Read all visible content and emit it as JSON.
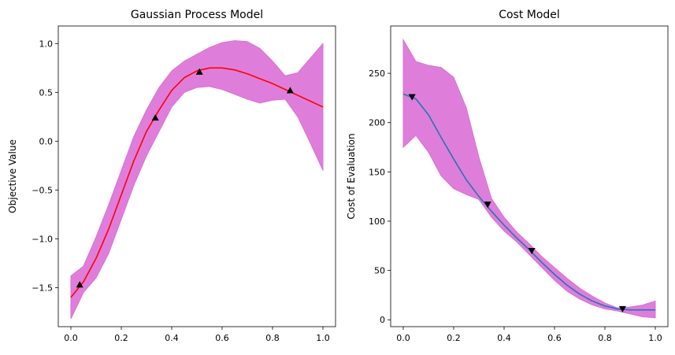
{
  "chart_data": [
    {
      "type": "line",
      "title": "Gaussian Process Model",
      "xlabel": "",
      "ylabel": "Objective Value",
      "xlim": [
        -0.05,
        1.05
      ],
      "ylim": [
        -1.9,
        1.18
      ],
      "xticks": [
        0.0,
        0.2,
        0.4,
        0.6,
        0.8,
        1.0
      ],
      "xtick_labels": [
        "0.0",
        "0.2",
        "0.4",
        "0.6",
        "0.8",
        "1.0"
      ],
      "yticks": [
        -1.5,
        -1.0,
        -0.5,
        0.0,
        0.5,
        1.0
      ],
      "ytick_labels": [
        "−1.5",
        "−1.0",
        "−0.5",
        "0.0",
        "0.5",
        "1.0"
      ],
      "grid": false,
      "mean": {
        "color": "#ff0000",
        "x": [
          0.0,
          0.05,
          0.1,
          0.15,
          0.2,
          0.25,
          0.3,
          0.35,
          0.4,
          0.45,
          0.5,
          0.55,
          0.6,
          0.65,
          0.7,
          0.75,
          0.8,
          0.85,
          0.9,
          0.95,
          1.0
        ],
        "y": [
          -1.6,
          -1.44,
          -1.2,
          -0.9,
          -0.55,
          -0.2,
          0.1,
          0.32,
          0.52,
          0.65,
          0.72,
          0.75,
          0.75,
          0.73,
          0.69,
          0.64,
          0.59,
          0.53,
          0.47,
          0.41,
          0.35
        ]
      },
      "band": {
        "color": "#da70d6",
        "x": [
          0.0,
          0.05,
          0.1,
          0.15,
          0.2,
          0.25,
          0.3,
          0.35,
          0.4,
          0.45,
          0.5,
          0.55,
          0.6,
          0.65,
          0.7,
          0.75,
          0.8,
          0.85,
          0.9,
          0.95,
          1.0
        ],
        "lower": [
          -1.82,
          -1.55,
          -1.4,
          -1.15,
          -0.8,
          -0.45,
          -0.15,
          0.1,
          0.35,
          0.5,
          0.55,
          0.56,
          0.53,
          0.48,
          0.43,
          0.39,
          0.42,
          0.43,
          0.25,
          -0.02,
          -0.3
        ],
        "upper": [
          -1.38,
          -1.28,
          -0.98,
          -0.65,
          -0.3,
          0.05,
          0.32,
          0.55,
          0.72,
          0.82,
          0.89,
          0.96,
          1.01,
          1.03,
          1.02,
          0.95,
          0.82,
          0.67,
          0.7,
          0.85,
          1.0
        ]
      },
      "points": {
        "marker": "triangle-up",
        "color": "#000000",
        "x": [
          0.035,
          0.335,
          0.51,
          0.87
        ],
        "y": [
          -1.47,
          0.24,
          0.71,
          0.52
        ]
      }
    },
    {
      "type": "line",
      "title": "Cost Model",
      "xlabel": "",
      "ylabel": "Cost of Evaluation",
      "xlim": [
        -0.05,
        1.05
      ],
      "ylim": [
        -7,
        298
      ],
      "xticks": [
        0.0,
        0.2,
        0.4,
        0.6,
        0.8,
        1.0
      ],
      "xtick_labels": [
        "0.0",
        "0.2",
        "0.4",
        "0.6",
        "0.8",
        "1.0"
      ],
      "yticks": [
        0,
        50,
        100,
        150,
        200,
        250
      ],
      "ytick_labels": [
        "0",
        "50",
        "100",
        "150",
        "200",
        "250"
      ],
      "grid": false,
      "mean": {
        "color": "#1f77b4",
        "x": [
          0.0,
          0.05,
          0.1,
          0.15,
          0.2,
          0.25,
          0.3,
          0.35,
          0.4,
          0.45,
          0.5,
          0.55,
          0.6,
          0.65,
          0.7,
          0.75,
          0.8,
          0.85,
          0.9,
          0.95,
          1.0
        ],
        "y": [
          229,
          224,
          208,
          185,
          163,
          142,
          125,
          110,
          96,
          83,
          71,
          58,
          46,
          35,
          26,
          19,
          14,
          11,
          10,
          10,
          10
        ]
      },
      "band": {
        "color": "#da70d6",
        "x": [
          0.0,
          0.05,
          0.1,
          0.15,
          0.2,
          0.25,
          0.3,
          0.35,
          0.4,
          0.45,
          0.5,
          0.55,
          0.6,
          0.65,
          0.7,
          0.75,
          0.8,
          0.85,
          0.9,
          0.95,
          1.0
        ],
        "lower": [
          175,
          187,
          170,
          146,
          133,
          127,
          122,
          104,
          90,
          79,
          66,
          53,
          40,
          29,
          21,
          15,
          11,
          9,
          6,
          3,
          2
        ],
        "upper": [
          284,
          262,
          258,
          256,
          246,
          215,
          165,
          123,
          104,
          89,
          77,
          64,
          53,
          42,
          32,
          24,
          17,
          12,
          13,
          15,
          19
        ]
      },
      "points": {
        "marker": "triangle-down",
        "color": "#000000",
        "x": [
          0.035,
          0.335,
          0.51,
          0.87
        ],
        "y": [
          226,
          117,
          70,
          11
        ]
      }
    }
  ]
}
